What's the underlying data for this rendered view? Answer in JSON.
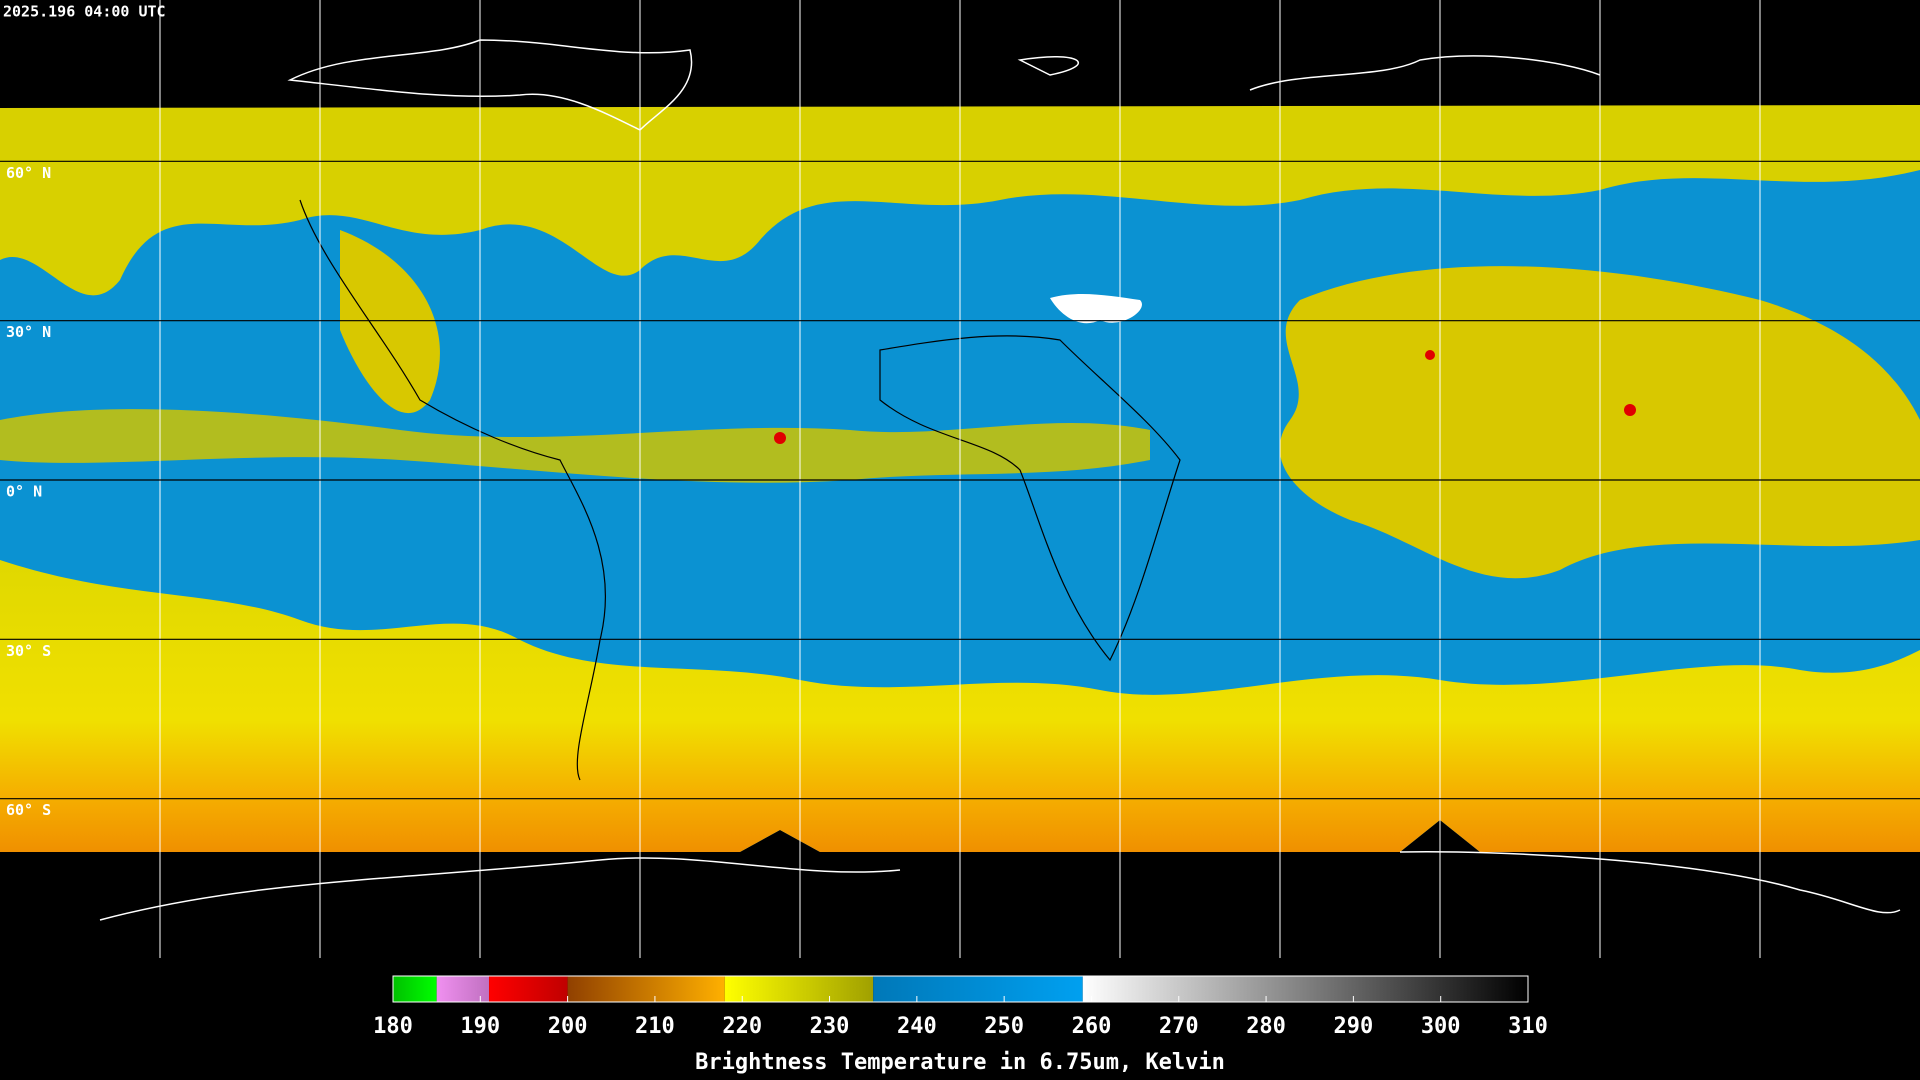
{
  "header": {
    "timestamp": "2025.196 04:00 UTC"
  },
  "map": {
    "lat_lim": [
      -90,
      90
    ],
    "lat_lines": [
      {
        "value": 60,
        "label": "60° N"
      },
      {
        "value": 30,
        "label": "30° N"
      },
      {
        "value": 0,
        "label": "0° N"
      },
      {
        "value": -30,
        "label": "30° S"
      },
      {
        "value": -60,
        "label": "60° S"
      }
    ]
  },
  "colorbar": {
    "title": "Brightness Temperature in 6.75um, Kelvin",
    "lim": [
      180,
      310
    ],
    "ticks": [
      180,
      190,
      200,
      210,
      220,
      230,
      240,
      250,
      260,
      270,
      280,
      290,
      300,
      310
    ],
    "segments": [
      {
        "from": 180,
        "to": 185,
        "colors": [
          "#00c000",
          "#00ff00"
        ]
      },
      {
        "from": 185,
        "to": 191,
        "colors": [
          "#f090f0",
          "#c070c0"
        ]
      },
      {
        "from": 191,
        "to": 200,
        "colors": [
          "#ff0000",
          "#c00000"
        ]
      },
      {
        "from": 200,
        "to": 218,
        "colors": [
          "#904000",
          "#ffb000"
        ]
      },
      {
        "from": 218,
        "to": 235,
        "colors": [
          "#ffff00",
          "#a0a000"
        ]
      },
      {
        "from": 235,
        "to": 259,
        "colors": [
          "#0078b8",
          "#00a0f0"
        ]
      },
      {
        "from": 259,
        "to": 310,
        "colors": [
          "#ffffff",
          "#000000"
        ]
      }
    ]
  }
}
